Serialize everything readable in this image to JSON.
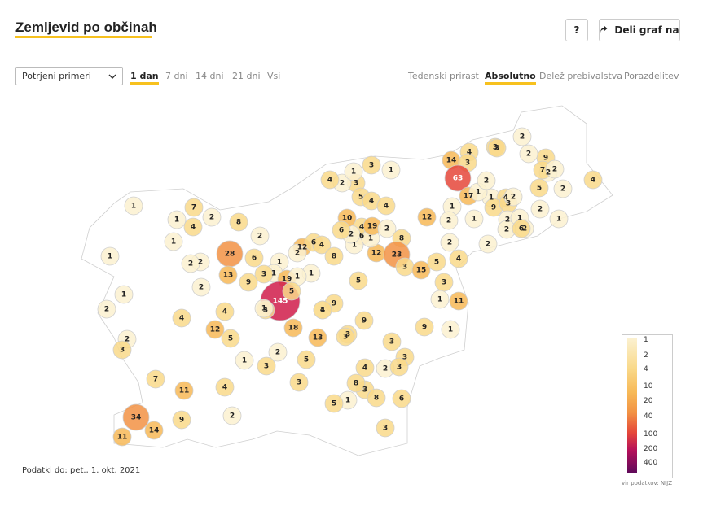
{
  "header": {
    "title": "Zemljevid po občinah",
    "help_label": "?",
    "share_label": "Deli graf na"
  },
  "controls": {
    "metric_select": "Potrjeni primeri",
    "periods": [
      "1 dan",
      "7 dni",
      "14 dni",
      "21 dni",
      "Vsi"
    ],
    "active_period": "1 dan",
    "modes": [
      "Tedenski prirast",
      "Absolutno",
      "Delež prebivalstva",
      "Porazdelitev"
    ],
    "active_mode": "Absolutno"
  },
  "legend": {
    "labels": [
      "1",
      "2",
      "4",
      "10",
      "20",
      "40",
      "100",
      "200",
      "400"
    ],
    "source": "vir podatkov: NIJZ"
  },
  "footnote": "Podatki do: pet., 1. okt. 2021",
  "colors": {
    "accent": "#f7c11e",
    "scale_1": "#fbf1d0",
    "scale_4": "#f9d98a",
    "scale_10": "#f7b957",
    "scale_20": "#f29244",
    "scale_40": "#e5463a",
    "scale_100": "#d01c4a",
    "scale_200": "#a0095a",
    "empty": "#ffffff",
    "border": "#cfcfcf"
  },
  "map_values": [
    "1",
    "4",
    "7",
    "2",
    "8",
    "1",
    "1",
    "1",
    "2",
    "2",
    "28",
    "6",
    "13",
    "9",
    "2",
    "12",
    "6",
    "1",
    "1",
    "2",
    "1",
    "3",
    "19",
    "1",
    "145",
    "5",
    "1",
    "9",
    "3",
    "5",
    "4",
    "8",
    "12",
    "6",
    "4",
    "1",
    "2",
    "1",
    "3",
    "2",
    "4",
    "1",
    "3",
    "1",
    "5",
    "10",
    "6",
    "4",
    "4",
    "19",
    "2",
    "8",
    "12",
    "23",
    "3",
    "15",
    "5",
    "2",
    "4",
    "1",
    "2",
    "1",
    "1",
    "4",
    "3",
    "14",
    "4",
    "3",
    "63",
    "17",
    "1",
    "2",
    "9",
    "3",
    "2",
    "1",
    "2",
    "2",
    "2",
    "9",
    "2",
    "5",
    "2",
    "2",
    "1",
    "4",
    "3",
    "2",
    "6",
    "7",
    "2",
    "2",
    "2",
    "3",
    "1",
    "11",
    "9",
    "1",
    "9",
    "4",
    "3",
    "12",
    "18",
    "13",
    "3",
    "3",
    "3",
    "4",
    "2",
    "3",
    "1",
    "5",
    "3",
    "1",
    "2",
    "3",
    "7",
    "11",
    "8",
    "3",
    "8",
    "6",
    "5",
    "3",
    "4",
    "2",
    "9",
    "11",
    "14",
    "34",
    "2",
    "3",
    "1",
    "4",
    "5",
    "2",
    "4",
    "1",
    "2"
  ]
}
